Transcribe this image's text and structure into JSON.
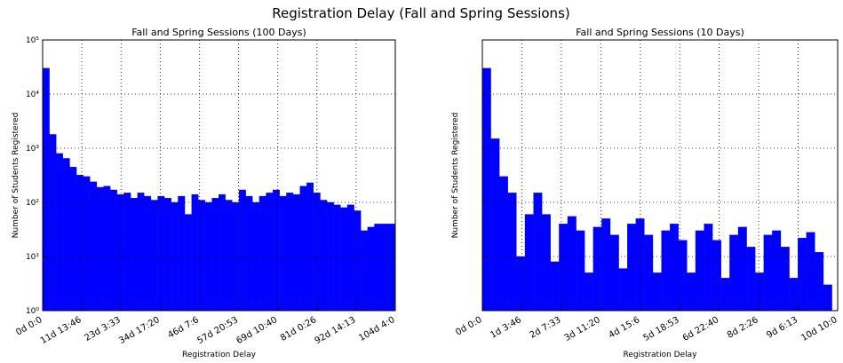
{
  "title": "Registration Delay (Fall and Spring Sessions)",
  "chart_data": [
    {
      "type": "histogram",
      "title": "Fall and Spring Sessions (100 Days)",
      "x_label": "Registration Delay",
      "y_label": "Number of Students Registered",
      "color": "#0000ff",
      "log_y": true,
      "grid": true,
      "show_ytick_labels": true,
      "bins": [
        0,
        2,
        4,
        6,
        8,
        10,
        12,
        14,
        16,
        18,
        20,
        22,
        24,
        26,
        28,
        30,
        32,
        34,
        36,
        38,
        40,
        42,
        44,
        46,
        48,
        50,
        52,
        54,
        56,
        58,
        60,
        62,
        64,
        66,
        68,
        70,
        72,
        74,
        76,
        78,
        80,
        82,
        84,
        86,
        88,
        90,
        92,
        94,
        96,
        98,
        100,
        102,
        104
      ],
      "values": [
        30000,
        1800,
        800,
        650,
        450,
        320,
        300,
        240,
        190,
        200,
        170,
        140,
        150,
        120,
        150,
        130,
        110,
        130,
        120,
        100,
        130,
        60,
        140,
        110,
        100,
        120,
        140,
        110,
        100,
        170,
        130,
        100,
        130,
        150,
        170,
        130,
        150,
        140,
        200,
        230,
        150,
        110,
        100,
        90,
        80,
        90,
        70,
        30,
        35,
        40,
        40,
        40
      ],
      "xlim": [
        0,
        104.167
      ],
      "xticks": [
        {
          "value": 0,
          "label": "0d 0:0"
        },
        {
          "value": 11.574,
          "label": "11d 13:46"
        },
        {
          "value": 23.148,
          "label": "23d 3:33"
        },
        {
          "value": 34.722,
          "label": "34d 17:20"
        },
        {
          "value": 46.296,
          "label": "46d 7:6"
        },
        {
          "value": 57.87,
          "label": "57d 20:53"
        },
        {
          "value": 69.444,
          "label": "69d 10:40"
        },
        {
          "value": 81.019,
          "label": "81d 0:26"
        },
        {
          "value": 92.593,
          "label": "92d 14:13"
        },
        {
          "value": 104.167,
          "label": "104d 4:0"
        }
      ],
      "ylim": [
        1,
        100000
      ],
      "yticks": [
        {
          "value": 1,
          "label": "10⁰"
        },
        {
          "value": 10,
          "label": "10¹"
        },
        {
          "value": 100,
          "label": "10²"
        },
        {
          "value": 1000,
          "label": "10³"
        },
        {
          "value": 10000,
          "label": "10⁴"
        },
        {
          "value": 100000,
          "label": "10⁵"
        }
      ]
    },
    {
      "type": "histogram",
      "title": "Fall and Spring Sessions (10 Days)",
      "x_label": "Registration Delay",
      "y_label": "Number of Students Registered",
      "color": "#0000ff",
      "log_y": true,
      "grid": true,
      "show_ytick_labels": false,
      "bins": [
        0,
        0.25,
        0.5,
        0.75,
        1,
        1.25,
        1.5,
        1.75,
        2,
        2.25,
        2.5,
        2.75,
        3,
        3.25,
        3.5,
        3.75,
        4,
        4.25,
        4.5,
        4.75,
        5,
        5.25,
        5.5,
        5.75,
        6,
        6.25,
        6.5,
        6.75,
        7,
        7.25,
        7.5,
        7.75,
        8,
        8.25,
        8.5,
        8.75,
        9,
        9.25,
        9.5,
        9.75,
        10,
        10.25
      ],
      "values": [
        30000,
        1500,
        300,
        150,
        10,
        60,
        150,
        60,
        8,
        40,
        55,
        30,
        5,
        35,
        50,
        25,
        6,
        40,
        50,
        25,
        5,
        30,
        40,
        20,
        5,
        30,
        40,
        20,
        4,
        25,
        35,
        15,
        5,
        25,
        30,
        15,
        4,
        22,
        28,
        12,
        3
      ],
      "xlim": [
        0,
        10.417
      ],
      "xticks": [
        {
          "value": 0,
          "label": "0d 0:0"
        },
        {
          "value": 1.157,
          "label": "1d 3:46"
        },
        {
          "value": 2.315,
          "label": "2d 7:33"
        },
        {
          "value": 3.472,
          "label": "3d 11:20"
        },
        {
          "value": 4.63,
          "label": "4d 15:6"
        },
        {
          "value": 5.787,
          "label": "5d 18:53"
        },
        {
          "value": 6.944,
          "label": "6d 22:40"
        },
        {
          "value": 8.102,
          "label": "8d 2:26"
        },
        {
          "value": 9.259,
          "label": "9d 6:13"
        },
        {
          "value": 10.417,
          "label": "10d 10:0"
        }
      ],
      "ylim": [
        1,
        100000
      ],
      "yticks": [
        1,
        10,
        100,
        1000,
        10000,
        100000
      ]
    }
  ]
}
